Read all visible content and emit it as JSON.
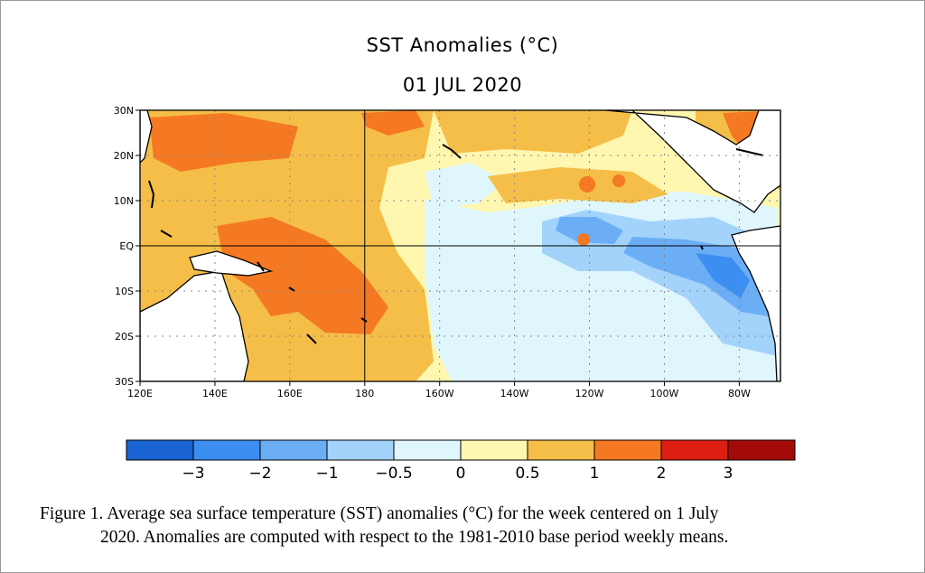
{
  "title": "SST Anomalies (°C)",
  "date": "01 JUL 2020",
  "map": {
    "lat_labels": [
      "30N",
      "20N",
      "10N",
      "EQ",
      "10S",
      "20S",
      "30S"
    ],
    "lon_labels": [
      "120E",
      "140E",
      "160E",
      "180",
      "160W",
      "140W",
      "120W",
      "100W",
      "80W"
    ]
  },
  "colorbar": {
    "colors": [
      "#1a63d2",
      "#3c8ef0",
      "#6caef6",
      "#a3d3fa",
      "#dff6fc",
      "#fff6b0",
      "#f5be48",
      "#f47922",
      "#de1e12",
      "#a50a0a"
    ],
    "tick_labels": [
      "−3",
      "−2",
      "−1",
      "−0.5",
      "0",
      "0.5",
      "1",
      "2",
      "3"
    ]
  },
  "caption": {
    "line1": "Figure 1. Average sea surface temperature (SST) anomalies (°C) for the week centered on 1 July",
    "line2": "2020.  Anomalies are computed with respect to the 1981-2010 base period weekly means."
  }
}
